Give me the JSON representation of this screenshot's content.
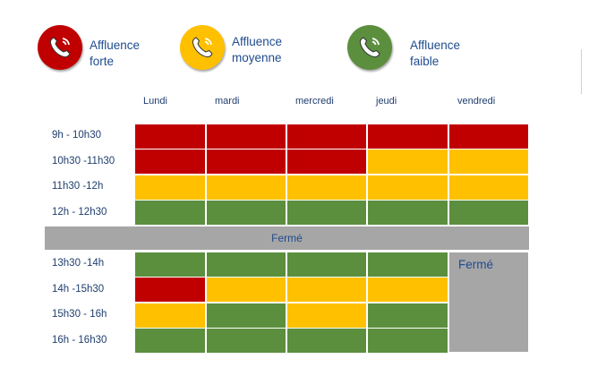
{
  "legend": [
    {
      "line1": "Affluence",
      "line2": "forte",
      "color": "#c00000",
      "icon": "phone-icon"
    },
    {
      "line1": "Affluence",
      "line2": "moyenne",
      "color": "#ffc000",
      "icon": "phone-icon"
    },
    {
      "line1": "Affluence",
      "line2": "faible",
      "color": "#5b8f3e",
      "icon": "phone-icon"
    }
  ],
  "colors": {
    "forte": "#c00000",
    "moyenne": "#ffc000",
    "faible": "#5b8f3e",
    "ferme": "#a6a6a6"
  },
  "days": [
    "Lundi",
    "mardi",
    "mercredi",
    "jeudi",
    "vendredi"
  ],
  "morning": [
    {
      "time": "9h - 10h30",
      "levels": [
        "forte",
        "forte",
        "forte",
        "forte",
        "forte"
      ]
    },
    {
      "time": "10h30 -11h30",
      "levels": [
        "forte",
        "forte",
        "forte",
        "moyenne",
        "moyenne"
      ]
    },
    {
      "time": "11h30 -12h",
      "levels": [
        "moyenne",
        "moyenne",
        "moyenne",
        "moyenne",
        "moyenne"
      ]
    },
    {
      "time": "12h - 12h30",
      "levels": [
        "faible",
        "faible",
        "faible",
        "faible",
        "faible"
      ]
    }
  ],
  "lunch_closed_label": "Fermé",
  "afternoon": [
    {
      "time": "13h30 -14h",
      "levels": [
        "faible",
        "faible",
        "faible",
        "faible"
      ]
    },
    {
      "time": "14h -15h30",
      "levels": [
        "forte",
        "moyenne",
        "moyenne",
        "moyenne"
      ]
    },
    {
      "time": "15h30 - 16h",
      "levels": [
        "moyenne",
        "faible",
        "moyenne",
        "faible"
      ]
    },
    {
      "time": "16h - 16h30",
      "levels": [
        "faible",
        "faible",
        "faible",
        "faible"
      ]
    }
  ],
  "friday_afternoon_closed_label": "Fermé"
}
